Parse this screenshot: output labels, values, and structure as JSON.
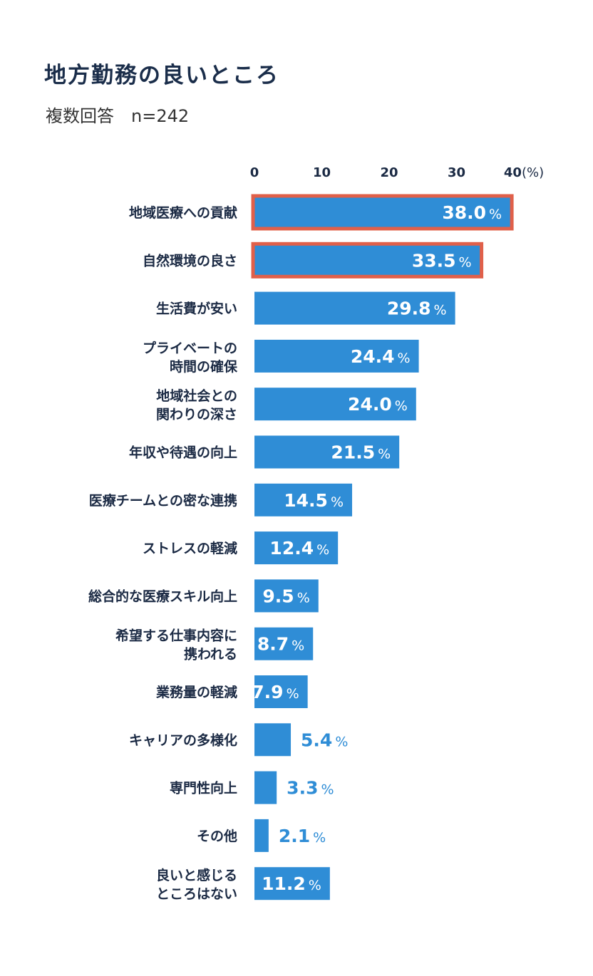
{
  "title": "地方勤務の良いところ",
  "subtitle": "複数回答　n=242",
  "chart_data": {
    "type": "bar",
    "orientation": "horizontal",
    "title": "地方勤務の良いところ",
    "subtitle": "複数回答　n=242",
    "unit_label": "(%)",
    "xlim": [
      0,
      40
    ],
    "xticks": [
      "0",
      "10",
      "20",
      "30",
      "40"
    ],
    "bar_color": "#2f8dd6",
    "highlight_color": "#e0604a",
    "highlighted": [
      "地域医療への貢献",
      "自然環境の良さ"
    ],
    "categories": [
      [
        "地域医療への貢献"
      ],
      [
        "自然環境の良さ"
      ],
      [
        "生活費が安い"
      ],
      [
        "プライベートの",
        "時間の確保"
      ],
      [
        "地域社会との",
        "関わりの深さ"
      ],
      [
        "年収や待遇の向上"
      ],
      [
        "医療チームとの密な連携"
      ],
      [
        "ストレスの軽減"
      ],
      [
        "総合的な医療スキル向上"
      ],
      [
        "希望する仕事内容に",
        "携われる"
      ],
      [
        "業務量の軽減"
      ],
      [
        "キャリアの多様化"
      ],
      [
        "専門性向上"
      ],
      [
        "その他"
      ],
      [
        "良いと感じる",
        "ところはない"
      ]
    ],
    "values": [
      38.0,
      33.5,
      29.8,
      24.4,
      24.0,
      21.5,
      14.5,
      12.4,
      9.5,
      8.7,
      7.9,
      5.4,
      3.3,
      2.1,
      11.2
    ],
    "value_labels": [
      "38.0",
      "33.5",
      "29.8",
      "24.4",
      "24.0",
      "21.5",
      "14.5",
      "12.4",
      "9.5",
      "8.7",
      "7.9",
      "5.4",
      "3.3",
      "2.1",
      "11.2"
    ],
    "percent_sign": "%"
  }
}
